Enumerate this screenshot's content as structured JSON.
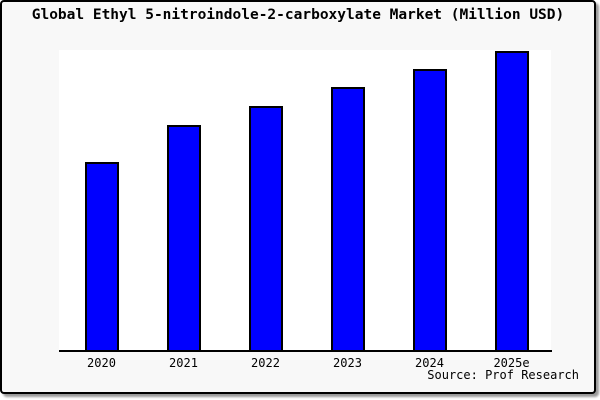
{
  "window": {
    "background_color": "#f8f8f8",
    "border_color": "#000000"
  },
  "chart_data": {
    "type": "bar",
    "title": "Global Ethyl 5-nitroindole-2-carboxylate Market (Million USD)",
    "categories": [
      "2020",
      "2021",
      "2022",
      "2023",
      "2024",
      "2025e"
    ],
    "values": [
      62.7,
      75.1,
      81.4,
      87.7,
      93.6,
      99.7
    ],
    "values_note": "No y-axis ticks or data labels shown; values estimated as percent of plot height",
    "xlabel": "",
    "ylabel": "",
    "ylim": [
      0,
      100
    ],
    "grid": false,
    "legend": false,
    "bar_color": "#0000ff",
    "bar_edge_color": "#000000",
    "plot_background": "#ffffff",
    "source": "Source: Prof Research"
  }
}
